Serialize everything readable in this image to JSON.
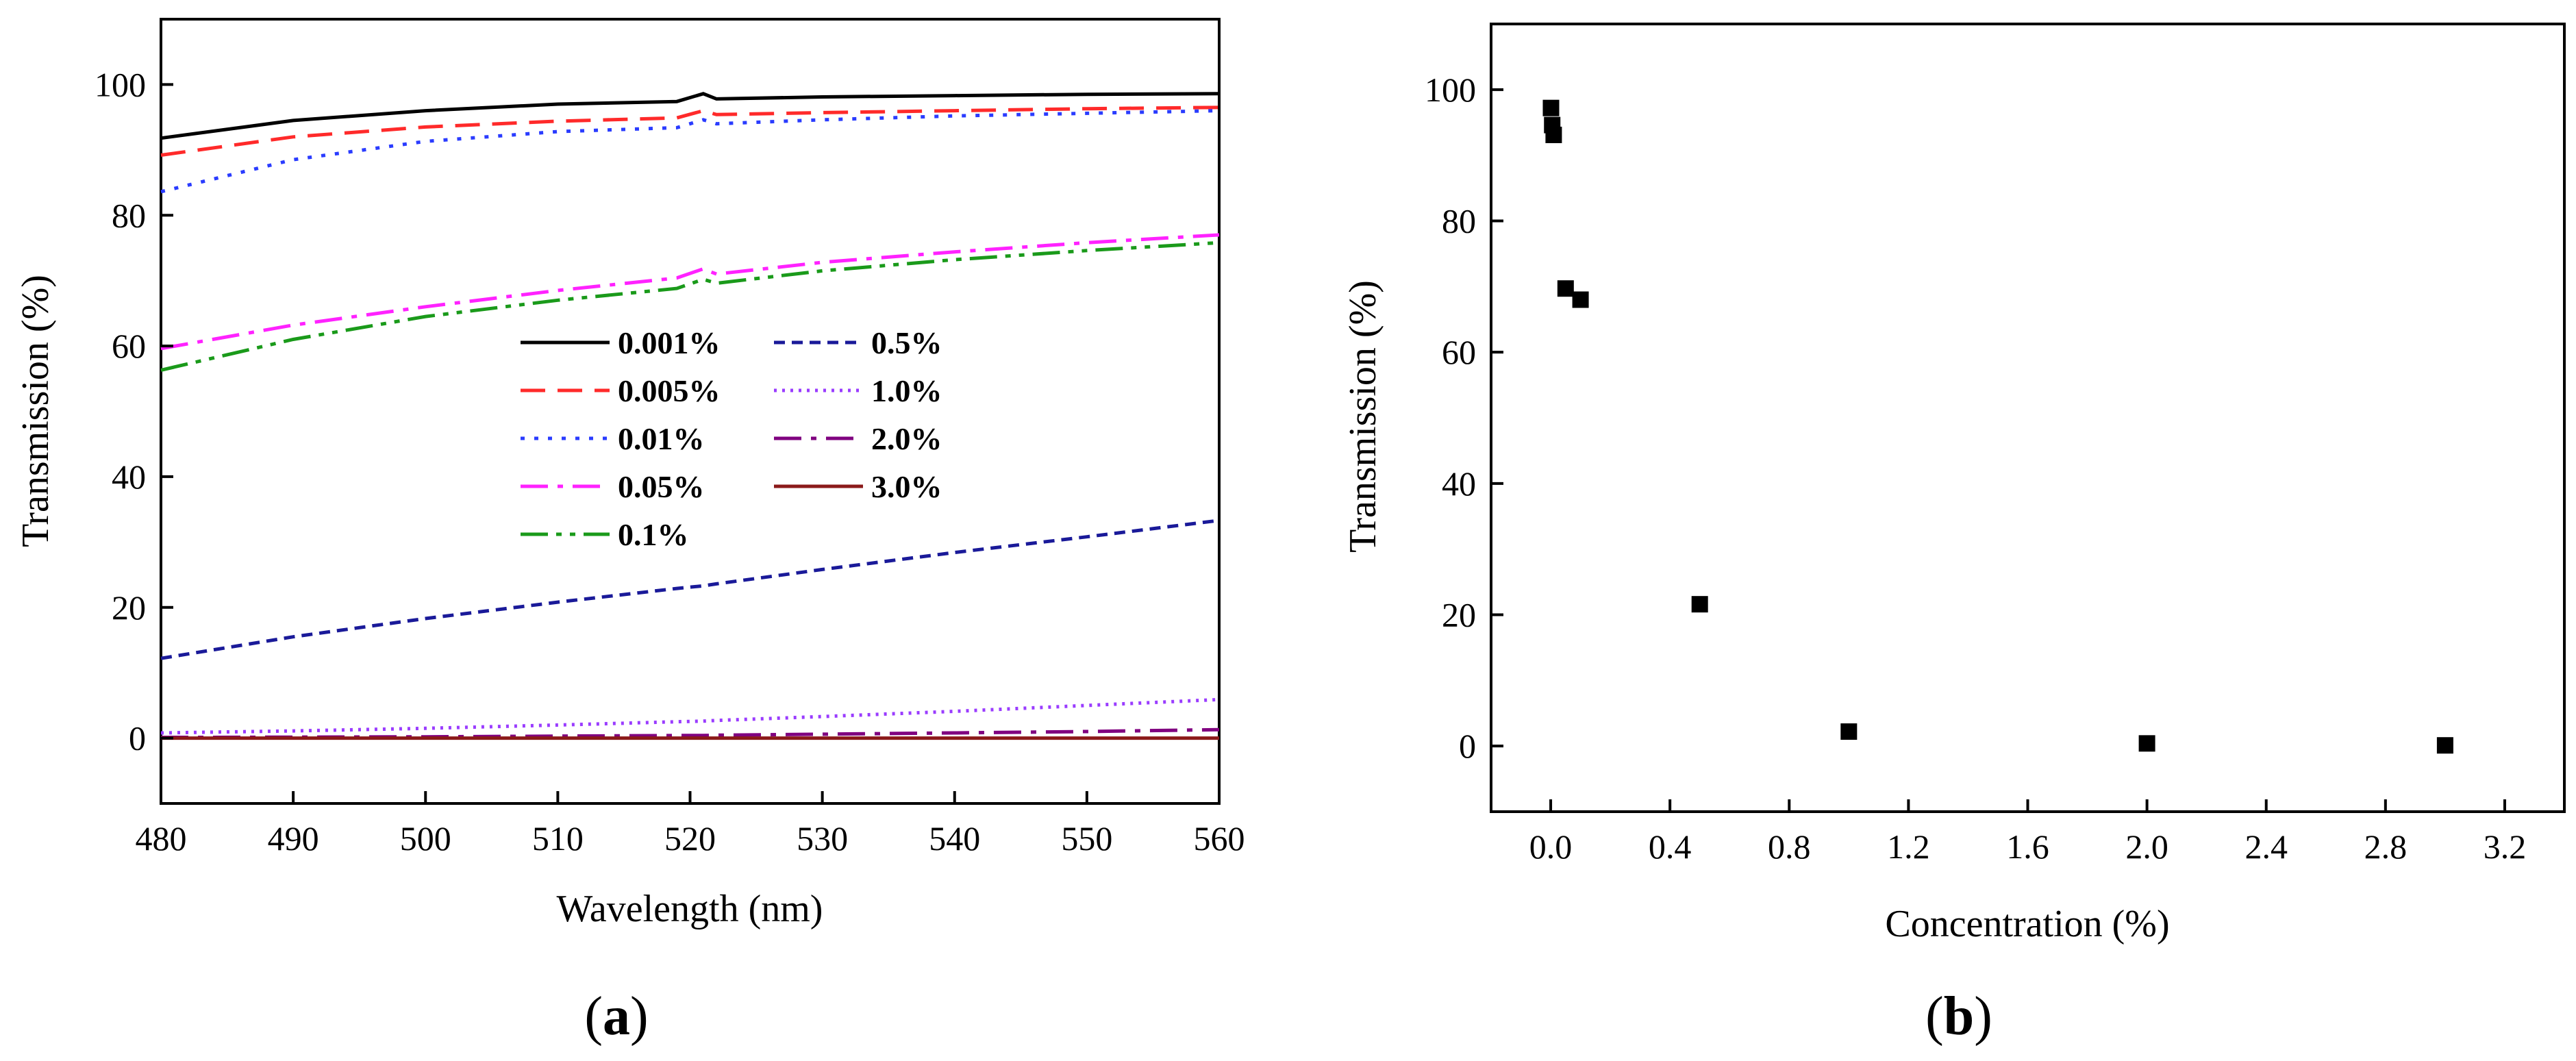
{
  "chart_data": [
    {
      "type": "line",
      "panel_label": {
        "open": "(",
        "letter": "a",
        "close": ")"
      },
      "xlabel": "Wavelength (nm)",
      "ylabel": "Transmission (%)",
      "xlim": [
        480,
        560
      ],
      "ylim": [
        -10,
        110
      ],
      "xticks": [
        480,
        490,
        500,
        510,
        520,
        530,
        540,
        550,
        560
      ],
      "yticks": [
        0,
        20,
        40,
        60,
        80,
        100
      ],
      "grid": false,
      "legend_position": "center",
      "x": [
        480,
        490,
        500,
        510,
        519,
        521,
        522,
        530,
        540,
        550,
        560
      ],
      "series": [
        {
          "name": "0.001%",
          "color": "#000000",
          "dash": "solid",
          "values": [
            91.8,
            94.5,
            96.0,
            97.0,
            97.4,
            98.6,
            97.8,
            98.1,
            98.3,
            98.5,
            98.6
          ]
        },
        {
          "name": "0.005%",
          "color": "#ff2a2a",
          "dash": "dash",
          "values": [
            89.2,
            92.0,
            93.5,
            94.4,
            94.9,
            96.0,
            95.4,
            95.7,
            96.0,
            96.3,
            96.5
          ]
        },
        {
          "name": "0.01%",
          "color": "#2a3cff",
          "dash": "dot",
          "values": [
            83.6,
            88.5,
            91.3,
            92.8,
            93.4,
            94.6,
            94.0,
            94.6,
            95.2,
            95.6,
            96.0
          ]
        },
        {
          "name": "0.05%",
          "color": "#ff22ff",
          "dash": "dashdot",
          "values": [
            59.6,
            63.2,
            66.0,
            68.5,
            70.4,
            71.8,
            71.0,
            72.8,
            74.4,
            75.8,
            77.0
          ]
        },
        {
          "name": "0.1%",
          "color": "#1a9a1a",
          "dash": "dashdotdot",
          "values": [
            56.3,
            61.0,
            64.5,
            67.0,
            68.8,
            70.2,
            69.6,
            71.5,
            73.2,
            74.6,
            75.8
          ]
        },
        {
          "name": "0.5%",
          "color": "#1a1a99",
          "dash": "shortdash",
          "values": [
            12.2,
            15.5,
            18.3,
            20.8,
            22.9,
            23.3,
            23.6,
            25.8,
            28.4,
            30.8,
            33.3
          ]
        },
        {
          "name": "1.0%",
          "color": "#9a3cff",
          "dash": "shortdot",
          "values": [
            0.8,
            1.1,
            1.5,
            2.0,
            2.5,
            2.6,
            2.7,
            3.3,
            4.1,
            5.0,
            5.9
          ]
        },
        {
          "name": "2.0%",
          "color": "#800080",
          "dash": "dashdot",
          "values": [
            0.1,
            0.15,
            0.2,
            0.3,
            0.4,
            0.4,
            0.45,
            0.6,
            0.8,
            1.0,
            1.3
          ]
        },
        {
          "name": "3.0%",
          "color": "#8b1a1a",
          "dash": "solid",
          "values": [
            0,
            0,
            0,
            0,
            0,
            0,
            0,
            0,
            0,
            0,
            0
          ]
        }
      ]
    },
    {
      "type": "scatter",
      "panel_label": {
        "open": "(",
        "letter": "b",
        "close": ")"
      },
      "xlabel": "Concentration (%)",
      "ylabel": "Transmission (%)",
      "xlim": [
        -0.2,
        3.4
      ],
      "ylim": [
        -10,
        110
      ],
      "xticks": [
        "0.0",
        "0.4",
        "0.8",
        "1.2",
        "1.6",
        "2.0",
        "2.4",
        "2.8",
        "3.2"
      ],
      "yticks": [
        0,
        20,
        40,
        60,
        80,
        100
      ],
      "grid": false,
      "marker": "square",
      "color": "#000000",
      "x": [
        0.001,
        0.005,
        0.01,
        0.05,
        0.1,
        0.5,
        1.0,
        2.0,
        3.0
      ],
      "y": [
        97.2,
        94.6,
        93.1,
        69.7,
        68.0,
        21.6,
        2.2,
        0.4,
        0.1
      ]
    }
  ]
}
